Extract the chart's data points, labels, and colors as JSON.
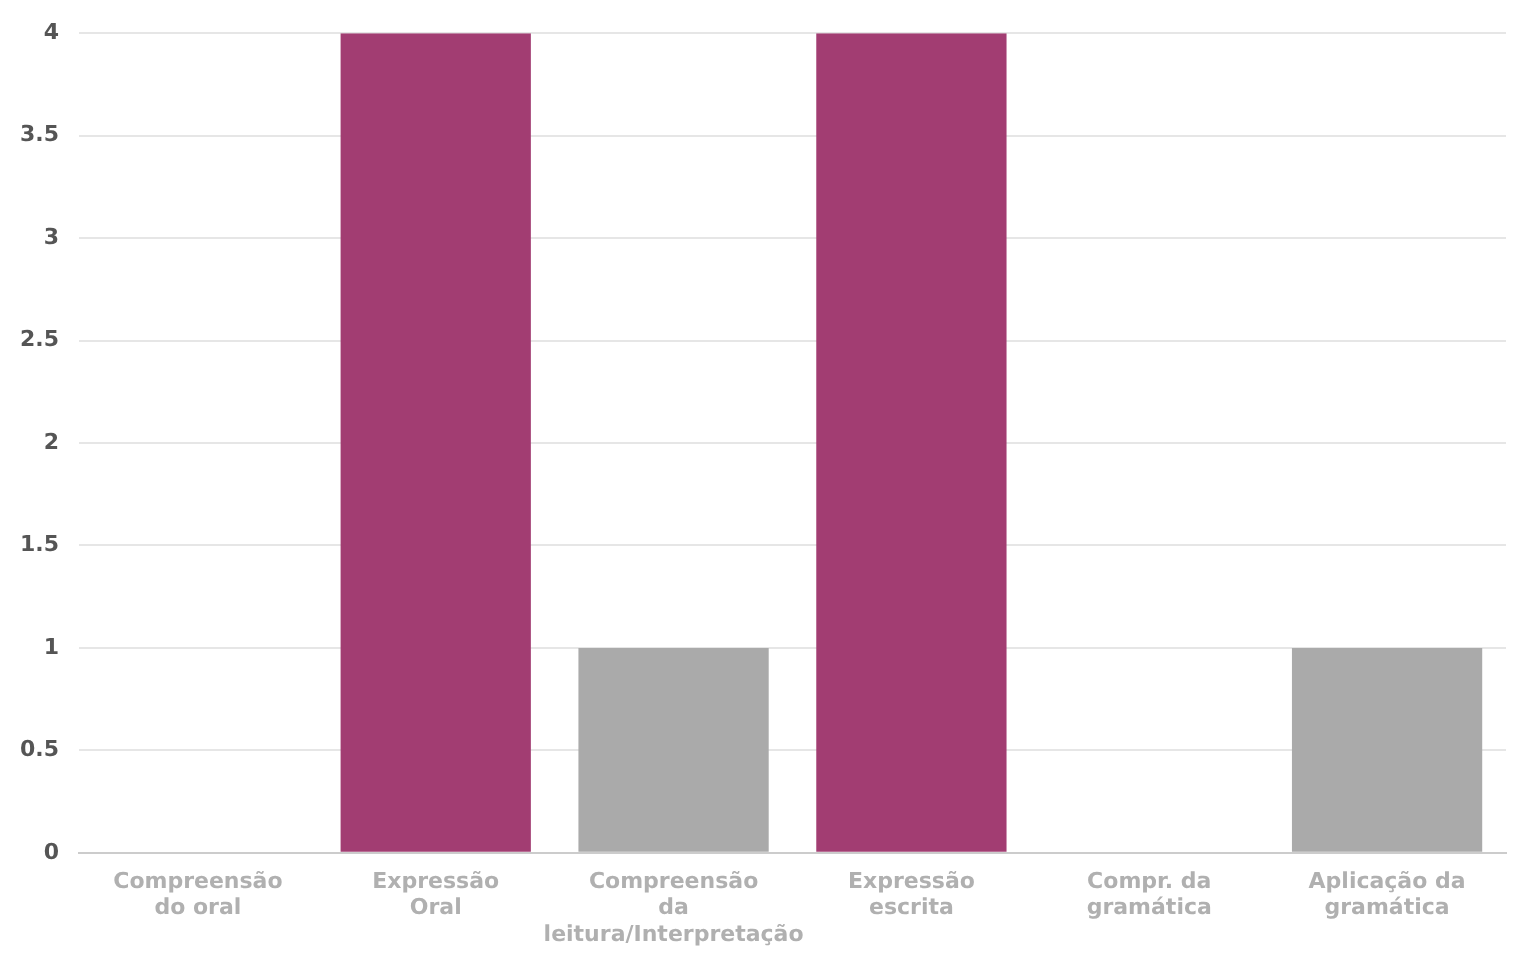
{
  "chart_data": {
    "type": "bar",
    "categories": [
      "Compreensão do oral",
      "Expressão Oral",
      "Compreensão da leitura/Interpretação",
      "Expressão escrita",
      "Compr. da gramática",
      "Aplicação da gramática"
    ],
    "values": [
      0,
      4,
      1,
      4,
      0,
      1
    ],
    "colors": [
      "#aaaaaa",
      "#a23d72",
      "#aaaaaa",
      "#a23d72",
      "#aaaaaa",
      "#aaaaaa"
    ],
    "ylim": [
      0,
      4
    ],
    "yticks": [
      0,
      0.5,
      1,
      1.5,
      2,
      2.5,
      3,
      3.5,
      4
    ],
    "grid": "y",
    "legend": false
  }
}
